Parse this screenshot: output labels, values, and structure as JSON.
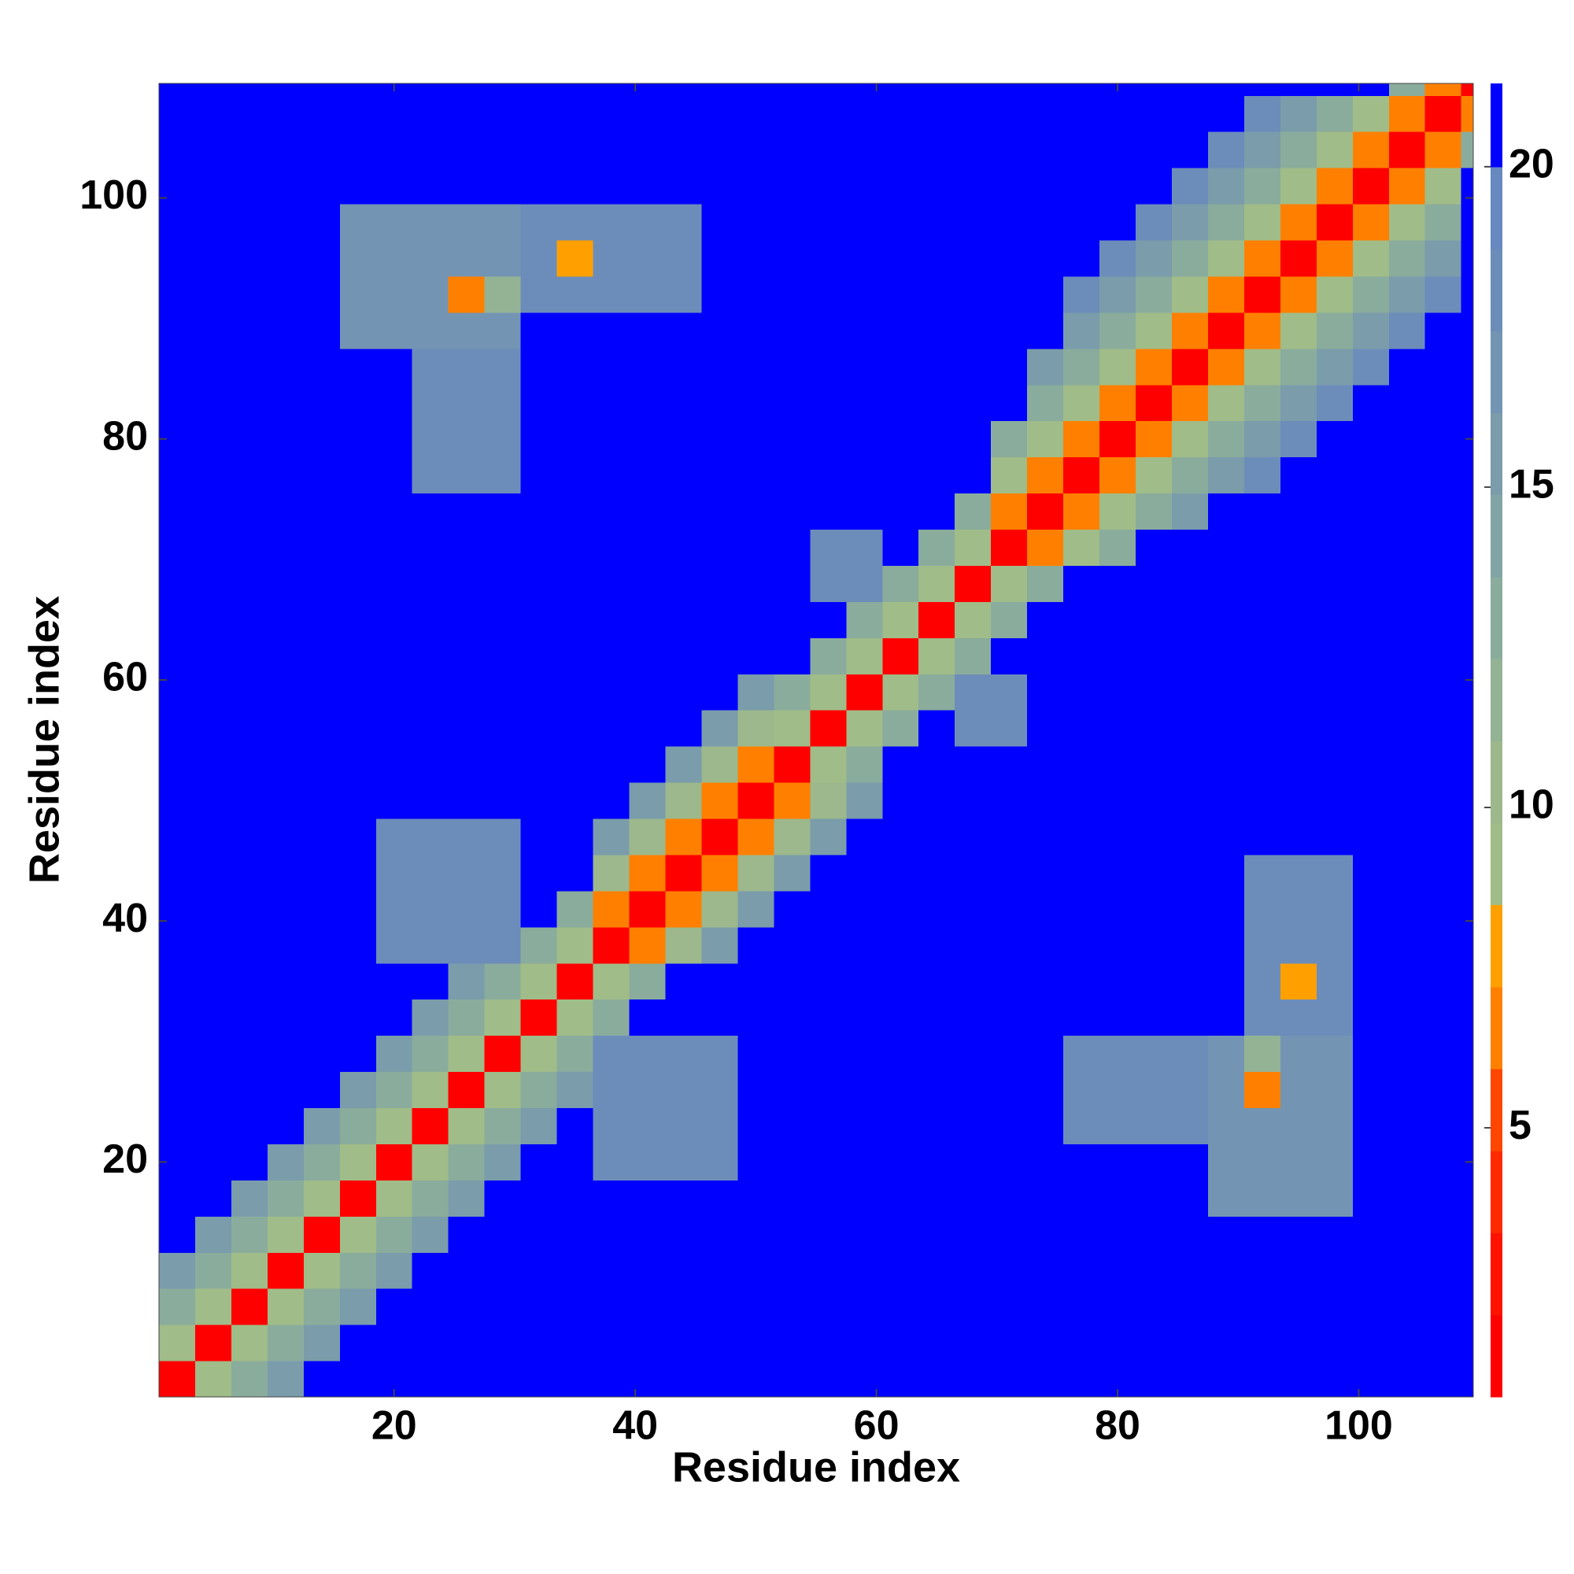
{
  "chart_data": {
    "type": "heatmap",
    "xlabel": "Residue index",
    "ylabel": "Residue index",
    "xlim": [
      0.5,
      109.5
    ],
    "ylim": [
      0.5,
      109.5
    ],
    "xticks": [
      20,
      40,
      60,
      80,
      100
    ],
    "yticks": [
      20,
      40,
      60,
      80,
      100
    ],
    "xbins": [
      0.5,
      3.5,
      6.5,
      9.5,
      12.5,
      15.5,
      18.5,
      21.5,
      24.5,
      27.5,
      30.5,
      33.5,
      36.5,
      39.5,
      42.5,
      45.5,
      48.5,
      51.5,
      54.5,
      57.5,
      60.5,
      63.5,
      66.5,
      69.5,
      72.5,
      75.5,
      78.5,
      81.5,
      84.5,
      87.5,
      90.5,
      93.5,
      96.5,
      99.5,
      102.5,
      105.5,
      108.5,
      109.5
    ],
    "ybins": [
      0.5,
      3.5,
      6.5,
      9.5,
      12.5,
      15.5,
      18.5,
      21.5,
      24.5,
      27.5,
      30.5,
      33.5,
      36.5,
      39.5,
      42.5,
      45.5,
      48.5,
      51.5,
      54.5,
      57.5,
      60.5,
      63.5,
      66.5,
      69.5,
      72.5,
      75.5,
      78.5,
      81.5,
      84.5,
      87.5,
      90.5,
      93.5,
      96.5,
      99.5,
      102.5,
      105.5,
      108.5,
      109.5
    ],
    "clim": [
      0.8,
      21.3
    ],
    "cbticks": [
      5,
      10,
      15,
      20
    ],
    "levels": [
      0.8,
      2.08,
      3.36,
      4.64,
      5.92,
      7.2,
      8.48,
      9.76,
      11.04,
      12.32,
      13.6,
      14.88,
      16.16,
      17.44,
      18.72,
      20,
      21.3
    ],
    "colors": [
      "#ff0000",
      "#ff1200",
      "#ff2a00",
      "#ff4600",
      "#ff8000",
      "#ffa000",
      "#a0bc88",
      "#9cb88c",
      "#94b394",
      "#8aac9c",
      "#81a5a4",
      "#7a9cab",
      "#7494b3",
      "#6c8dba",
      "#6888c0",
      "#0000ff"
    ],
    "z": [
      [
        2,
        9,
        13,
        16,
        21,
        21,
        21,
        21,
        21,
        21,
        21,
        21,
        21,
        21,
        21,
        21,
        21,
        21,
        21,
        21,
        21,
        21,
        21,
        21,
        21,
        21,
        21,
        21,
        21,
        21,
        21,
        21,
        21,
        21,
        21,
        21,
        21
      ],
      [
        9,
        2,
        9,
        13,
        16,
        21,
        21,
        21,
        21,
        21,
        21,
        21,
        21,
        21,
        21,
        21,
        21,
        21,
        21,
        21,
        21,
        21,
        21,
        21,
        21,
        21,
        21,
        21,
        21,
        21,
        21,
        21,
        21,
        21,
        21,
        21,
        21
      ],
      [
        13,
        9,
        2,
        9,
        13,
        16,
        21,
        21,
        21,
        21,
        21,
        21,
        21,
        21,
        21,
        21,
        21,
        21,
        21,
        21,
        21,
        21,
        21,
        21,
        21,
        21,
        21,
        21,
        21,
        21,
        21,
        21,
        21,
        21,
        21,
        21,
        21
      ],
      [
        16,
        13,
        9,
        2,
        9,
        13,
        16,
        21,
        21,
        21,
        21,
        21,
        21,
        21,
        21,
        21,
        21,
        21,
        21,
        21,
        21,
        21,
        21,
        21,
        21,
        21,
        21,
        21,
        21,
        21,
        21,
        21,
        21,
        21,
        21,
        21,
        21
      ],
      [
        21,
        16,
        13,
        9,
        2,
        9,
        13,
        16,
        21,
        21,
        21,
        21,
        21,
        21,
        21,
        21,
        21,
        21,
        21,
        21,
        21,
        21,
        21,
        21,
        21,
        21,
        21,
        21,
        21,
        21,
        21,
        21,
        21,
        21,
        21,
        21,
        21
      ],
      [
        21,
        21,
        16,
        13,
        9,
        2,
        9,
        13,
        16,
        21,
        21,
        21,
        21,
        21,
        21,
        21,
        21,
        21,
        21,
        21,
        21,
        21,
        21,
        21,
        21,
        21,
        21,
        21,
        21,
        17,
        17,
        17,
        17,
        21,
        21,
        21,
        21
      ],
      [
        21,
        21,
        21,
        16,
        13,
        9,
        2,
        9,
        13,
        16,
        21,
        21,
        18,
        18,
        18,
        18,
        21,
        21,
        21,
        21,
        21,
        21,
        21,
        21,
        21,
        21,
        21,
        21,
        21,
        17,
        17,
        17,
        17,
        21,
        21,
        21,
        21
      ],
      [
        21,
        21,
        21,
        21,
        16,
        13,
        9,
        2,
        9,
        13,
        16,
        21,
        18,
        18,
        18,
        18,
        21,
        21,
        21,
        21,
        21,
        21,
        21,
        21,
        21,
        18,
        18,
        18,
        18,
        17,
        17,
        17,
        17,
        21,
        21,
        21,
        21
      ],
      [
        21,
        21,
        21,
        21,
        21,
        16,
        13,
        9,
        2,
        9,
        13,
        16,
        18,
        18,
        18,
        18,
        21,
        21,
        21,
        21,
        21,
        21,
        21,
        21,
        21,
        18,
        18,
        18,
        18,
        17,
        7,
        17,
        17,
        21,
        21,
        21,
        21
      ],
      [
        21,
        21,
        21,
        21,
        21,
        21,
        16,
        13,
        9,
        2,
        9,
        13,
        18,
        18,
        18,
        18,
        21,
        21,
        21,
        21,
        21,
        21,
        21,
        21,
        21,
        18,
        18,
        18,
        18,
        17,
        12,
        17,
        17,
        21,
        21,
        21,
        21
      ],
      [
        21,
        21,
        21,
        21,
        21,
        21,
        21,
        16,
        13,
        9,
        2,
        9,
        13,
        21,
        21,
        21,
        21,
        21,
        21,
        21,
        21,
        21,
        21,
        21,
        21,
        21,
        21,
        21,
        21,
        21,
        18,
        18,
        18,
        21,
        21,
        21,
        21
      ],
      [
        21,
        21,
        21,
        21,
        21,
        21,
        21,
        21,
        16,
        13,
        9,
        2,
        9,
        13,
        21,
        21,
        21,
        21,
        21,
        21,
        21,
        21,
        21,
        21,
        21,
        21,
        21,
        21,
        21,
        21,
        18,
        8,
        18,
        21,
        21,
        21,
        21
      ],
      [
        21,
        21,
        21,
        21,
        21,
        21,
        18,
        18,
        18,
        18,
        13,
        9,
        2,
        6,
        10,
        15,
        21,
        21,
        21,
        21,
        21,
        21,
        21,
        21,
        21,
        21,
        21,
        21,
        21,
        21,
        18,
        18,
        18,
        21,
        21,
        21,
        21
      ],
      [
        21,
        21,
        21,
        21,
        21,
        21,
        18,
        18,
        18,
        18,
        21,
        13,
        6,
        2,
        6,
        10,
        15,
        21,
        21,
        21,
        21,
        21,
        21,
        21,
        21,
        21,
        21,
        21,
        21,
        21,
        18,
        18,
        18,
        21,
        21,
        21,
        21
      ],
      [
        21,
        21,
        21,
        21,
        21,
        21,
        18,
        18,
        18,
        18,
        21,
        21,
        10,
        6,
        2,
        6,
        10,
        15,
        21,
        21,
        21,
        21,
        21,
        21,
        21,
        21,
        21,
        21,
        21,
        21,
        18,
        18,
        18,
        21,
        21,
        21,
        21
      ],
      [
        21,
        21,
        21,
        21,
        21,
        21,
        18,
        18,
        18,
        18,
        21,
        21,
        15,
        10,
        6,
        2,
        6,
        10,
        15,
        21,
        21,
        21,
        21,
        21,
        21,
        21,
        21,
        21,
        21,
        21,
        21,
        21,
        21,
        21,
        21,
        21,
        21
      ],
      [
        21,
        21,
        21,
        21,
        21,
        21,
        21,
        21,
        21,
        21,
        21,
        21,
        21,
        15,
        10,
        6,
        2,
        6,
        10,
        15,
        21,
        21,
        21,
        21,
        21,
        21,
        21,
        21,
        21,
        21,
        21,
        21,
        21,
        21,
        21,
        21,
        21
      ],
      [
        21,
        21,
        21,
        21,
        21,
        21,
        21,
        21,
        21,
        21,
        21,
        21,
        21,
        21,
        15,
        10,
        6,
        2,
        9,
        13,
        21,
        21,
        21,
        21,
        21,
        21,
        21,
        21,
        21,
        21,
        21,
        21,
        21,
        21,
        21,
        21,
        21
      ],
      [
        21,
        21,
        21,
        21,
        21,
        21,
        21,
        21,
        21,
        21,
        21,
        21,
        21,
        21,
        21,
        15,
        10,
        9,
        2,
        9,
        13,
        21,
        18,
        18,
        21,
        21,
        21,
        21,
        21,
        21,
        21,
        21,
        21,
        21,
        21,
        21,
        21
      ],
      [
        21,
        21,
        21,
        21,
        21,
        21,
        21,
        21,
        21,
        21,
        21,
        21,
        21,
        21,
        21,
        21,
        15,
        13,
        9,
        2,
        9,
        13,
        18,
        18,
        21,
        21,
        21,
        21,
        21,
        21,
        21,
        21,
        21,
        21,
        21,
        21,
        21
      ],
      [
        21,
        21,
        21,
        21,
        21,
        21,
        21,
        21,
        21,
        21,
        21,
        21,
        21,
        21,
        21,
        21,
        21,
        21,
        13,
        9,
        2,
        9,
        13,
        21,
        21,
        21,
        21,
        21,
        21,
        21,
        21,
        21,
        21,
        21,
        21,
        21,
        21
      ],
      [
        21,
        21,
        21,
        21,
        21,
        21,
        21,
        21,
        21,
        21,
        21,
        21,
        21,
        21,
        21,
        21,
        21,
        21,
        21,
        13,
        9,
        2,
        9,
        13,
        21,
        21,
        21,
        21,
        21,
        21,
        21,
        21,
        21,
        21,
        21,
        21,
        21
      ],
      [
        21,
        21,
        21,
        21,
        21,
        21,
        21,
        21,
        21,
        21,
        21,
        21,
        21,
        21,
        21,
        21,
        21,
        21,
        18,
        18,
        13,
        9,
        2,
        9,
        13,
        21,
        21,
        21,
        21,
        21,
        21,
        21,
        21,
        21,
        21,
        21,
        21
      ],
      [
        21,
        21,
        21,
        21,
        21,
        21,
        21,
        21,
        21,
        21,
        21,
        21,
        21,
        21,
        21,
        21,
        21,
        21,
        18,
        18,
        21,
        13,
        9,
        2,
        6,
        9,
        13,
        21,
        21,
        21,
        21,
        21,
        21,
        21,
        21,
        21,
        21
      ],
      [
        21,
        21,
        21,
        21,
        21,
        21,
        21,
        21,
        21,
        21,
        21,
        21,
        21,
        21,
        21,
        21,
        21,
        21,
        21,
        21,
        21,
        21,
        13,
        6,
        2,
        6,
        9,
        13,
        16,
        21,
        21,
        21,
        21,
        21,
        21,
        21,
        21
      ],
      [
        21,
        21,
        21,
        21,
        21,
        21,
        21,
        18,
        18,
        18,
        21,
        21,
        21,
        21,
        21,
        21,
        21,
        21,
        21,
        21,
        21,
        21,
        21,
        9,
        6,
        2,
        6,
        9,
        13,
        16,
        18,
        21,
        21,
        21,
        21,
        21,
        21
      ],
      [
        21,
        21,
        21,
        21,
        21,
        21,
        21,
        18,
        18,
        18,
        21,
        21,
        21,
        21,
        21,
        21,
        21,
        21,
        21,
        21,
        21,
        21,
        21,
        13,
        9,
        6,
        2,
        6,
        9,
        13,
        16,
        18,
        21,
        21,
        21,
        21,
        21
      ],
      [
        21,
        21,
        21,
        21,
        21,
        21,
        21,
        18,
        18,
        18,
        21,
        21,
        21,
        21,
        21,
        21,
        21,
        21,
        21,
        21,
        21,
        21,
        21,
        21,
        13,
        9,
        6,
        2,
        6,
        9,
        13,
        16,
        18,
        21,
        21,
        21,
        21
      ],
      [
        21,
        21,
        21,
        21,
        21,
        21,
        21,
        18,
        18,
        18,
        21,
        21,
        21,
        21,
        21,
        21,
        21,
        21,
        21,
        21,
        21,
        21,
        21,
        21,
        16,
        13,
        9,
        6,
        2,
        6,
        9,
        13,
        16,
        18,
        21,
        21,
        21
      ],
      [
        21,
        21,
        21,
        21,
        21,
        17,
        17,
        17,
        17,
        17,
        21,
        21,
        21,
        21,
        21,
        21,
        21,
        21,
        21,
        21,
        21,
        21,
        21,
        21,
        21,
        16,
        13,
        9,
        6,
        2,
        6,
        9,
        13,
        16,
        18,
        21,
        21
      ],
      [
        21,
        21,
        21,
        21,
        21,
        17,
        17,
        17,
        7,
        12,
        18,
        18,
        18,
        18,
        18,
        21,
        21,
        21,
        21,
        21,
        21,
        21,
        21,
        21,
        21,
        18,
        16,
        13,
        9,
        6,
        2,
        6,
        9,
        13,
        16,
        18,
        21
      ],
      [
        21,
        21,
        21,
        21,
        21,
        17,
        17,
        17,
        17,
        17,
        18,
        8,
        18,
        18,
        18,
        21,
        21,
        21,
        21,
        21,
        21,
        21,
        21,
        21,
        21,
        21,
        18,
        16,
        13,
        9,
        6,
        2,
        6,
        9,
        13,
        16,
        21
      ],
      [
        21,
        21,
        21,
        21,
        21,
        17,
        17,
        17,
        17,
        17,
        18,
        18,
        18,
        18,
        18,
        21,
        21,
        21,
        21,
        21,
        21,
        21,
        21,
        21,
        21,
        21,
        21,
        18,
        16,
        13,
        9,
        6,
        2,
        6,
        9,
        13,
        21
      ],
      [
        21,
        21,
        21,
        21,
        21,
        21,
        21,
        21,
        21,
        21,
        21,
        21,
        21,
        21,
        21,
        21,
        21,
        21,
        21,
        21,
        21,
        21,
        21,
        21,
        21,
        21,
        21,
        21,
        18,
        16,
        13,
        9,
        6,
        2,
        6,
        9,
        21
      ],
      [
        21,
        21,
        21,
        21,
        21,
        21,
        21,
        21,
        21,
        21,
        21,
        21,
        21,
        21,
        21,
        21,
        21,
        21,
        21,
        21,
        21,
        21,
        21,
        21,
        21,
        21,
        21,
        21,
        21,
        18,
        16,
        13,
        9,
        6,
        2,
        6,
        13
      ],
      [
        21,
        21,
        21,
        21,
        21,
        21,
        21,
        21,
        21,
        21,
        21,
        21,
        21,
        21,
        21,
        21,
        21,
        21,
        21,
        21,
        21,
        21,
        21,
        21,
        21,
        21,
        21,
        21,
        21,
        21,
        18,
        16,
        13,
        9,
        6,
        2,
        6
      ],
      [
        21,
        21,
        21,
        21,
        21,
        21,
        21,
        21,
        21,
        21,
        21,
        21,
        21,
        21,
        21,
        21,
        21,
        21,
        21,
        21,
        21,
        21,
        21,
        21,
        21,
        21,
        21,
        21,
        21,
        21,
        21,
        21,
        21,
        21,
        13,
        6,
        2
      ]
    ]
  }
}
